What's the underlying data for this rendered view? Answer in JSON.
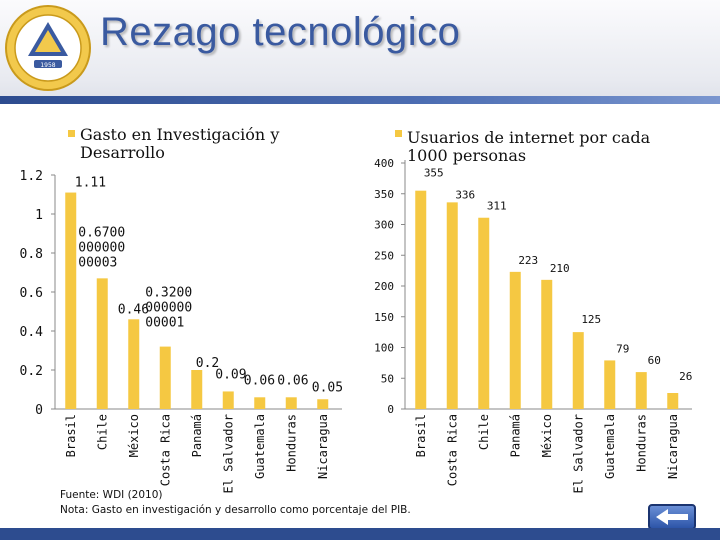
{
  "header": {
    "title": "Rezago tecnológico"
  },
  "seal": {
    "year": "1958"
  },
  "charts": [
    {
      "legend": [
        "Gasto en Investigación y",
        "Desarrollo"
      ]
    },
    {
      "legend": [
        "Usuarios de internet por cada",
        "1000 personas"
      ]
    }
  ],
  "chart_data": [
    {
      "type": "bar",
      "title": "",
      "legend": "Gasto en Investigación y Desarrollo",
      "categories": [
        "Brasil",
        "Chile",
        "México",
        "Costa Rica",
        "Panamá",
        "El Salvador",
        "Guatemala",
        "Honduras",
        "Nicaragua"
      ],
      "values": [
        1.11,
        0.67,
        0.46,
        0.32,
        0.2,
        0.09,
        0.06,
        0.06,
        0.05
      ],
      "data_labels": [
        "1.11",
        "0.6700 000000 00003",
        "0.46",
        "0.3200 000000 00001",
        "0.2",
        "0.09",
        "0.06",
        "0.06",
        "0.05"
      ],
      "yticks": [
        "0",
        "0.2",
        "0.4",
        "0.6",
        "0.8",
        "1",
        "1.2"
      ],
      "ylim": [
        0,
        1.2
      ],
      "grid": false,
      "legend_position": "top-left",
      "color": "#f5c842"
    },
    {
      "type": "bar",
      "title": "",
      "legend": "Usuarios de internet por cada 1000 personas",
      "categories": [
        "Brasil",
        "Costa Rica",
        "Chile",
        "Panamá",
        "México",
        "El Salvador",
        "Guatemala",
        "Honduras",
        "Nicaragua"
      ],
      "values": [
        355,
        336,
        311,
        223,
        210,
        125,
        79,
        60,
        26
      ],
      "yticks": [
        "0",
        "50",
        "100",
        "150",
        "200",
        "250",
        "300",
        "350",
        "400"
      ],
      "ylim": [
        0,
        400
      ],
      "grid": false,
      "legend_position": "top-right",
      "color": "#f5c842"
    }
  ],
  "notes": {
    "source": "Fuente: WDI (2010)",
    "note": "Nota: Gasto en investigación y desarrollo como porcentaje del PIB."
  }
}
